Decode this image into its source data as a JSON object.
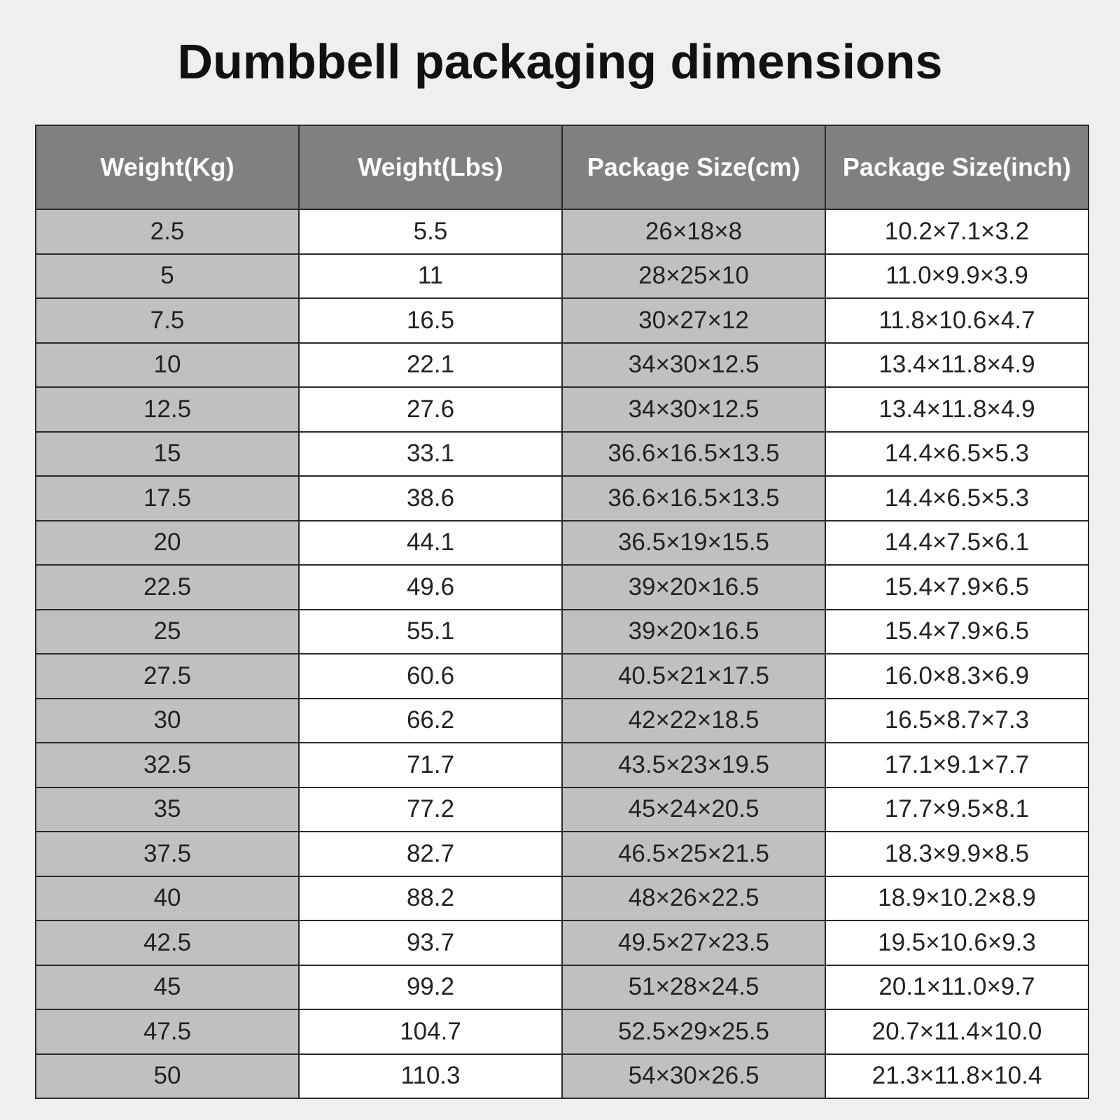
{
  "title": "Dumbbell packaging dimensions",
  "table": {
    "headers": [
      "Weight(Kg)",
      "Weight(Lbs)",
      "Package Size(cm)",
      "Package Size(inch)"
    ],
    "rows": [
      [
        "2.5",
        "5.5",
        "26×18×8",
        "10.2×7.1×3.2"
      ],
      [
        "5",
        "11",
        "28×25×10",
        "11.0×9.9×3.9"
      ],
      [
        "7.5",
        "16.5",
        "30×27×12",
        "11.8×10.6×4.7"
      ],
      [
        "10",
        "22.1",
        "34×30×12.5",
        "13.4×11.8×4.9"
      ],
      [
        "12.5",
        "27.6",
        "34×30×12.5",
        "13.4×11.8×4.9"
      ],
      [
        "15",
        "33.1",
        "36.6×16.5×13.5",
        "14.4×6.5×5.3"
      ],
      [
        "17.5",
        "38.6",
        "36.6×16.5×13.5",
        "14.4×6.5×5.3"
      ],
      [
        "20",
        "44.1",
        "36.5×19×15.5",
        "14.4×7.5×6.1"
      ],
      [
        "22.5",
        "49.6",
        "39×20×16.5",
        "15.4×7.9×6.5"
      ],
      [
        "25",
        "55.1",
        "39×20×16.5",
        "15.4×7.9×6.5"
      ],
      [
        "27.5",
        "60.6",
        "40.5×21×17.5",
        "16.0×8.3×6.9"
      ],
      [
        "30",
        "66.2",
        "42×22×18.5",
        "16.5×8.7×7.3"
      ],
      [
        "32.5",
        "71.7",
        "43.5×23×19.5",
        "17.1×9.1×7.7"
      ],
      [
        "35",
        "77.2",
        "45×24×20.5",
        "17.7×9.5×8.1"
      ],
      [
        "37.5",
        "82.7",
        "46.5×25×21.5",
        "18.3×9.9×8.5"
      ],
      [
        "40",
        "88.2",
        "48×26×22.5",
        "18.9×10.2×8.9"
      ],
      [
        "42.5",
        "93.7",
        "49.5×27×23.5",
        "19.5×10.6×9.3"
      ],
      [
        "45",
        "99.2",
        "51×28×24.5",
        "20.1×11.0×9.7"
      ],
      [
        "47.5",
        "104.7",
        "52.5×29×25.5",
        "20.7×11.4×10.0"
      ],
      [
        "50",
        "110.3",
        "54×30×26.5",
        "21.3×11.8×10.4"
      ]
    ]
  }
}
